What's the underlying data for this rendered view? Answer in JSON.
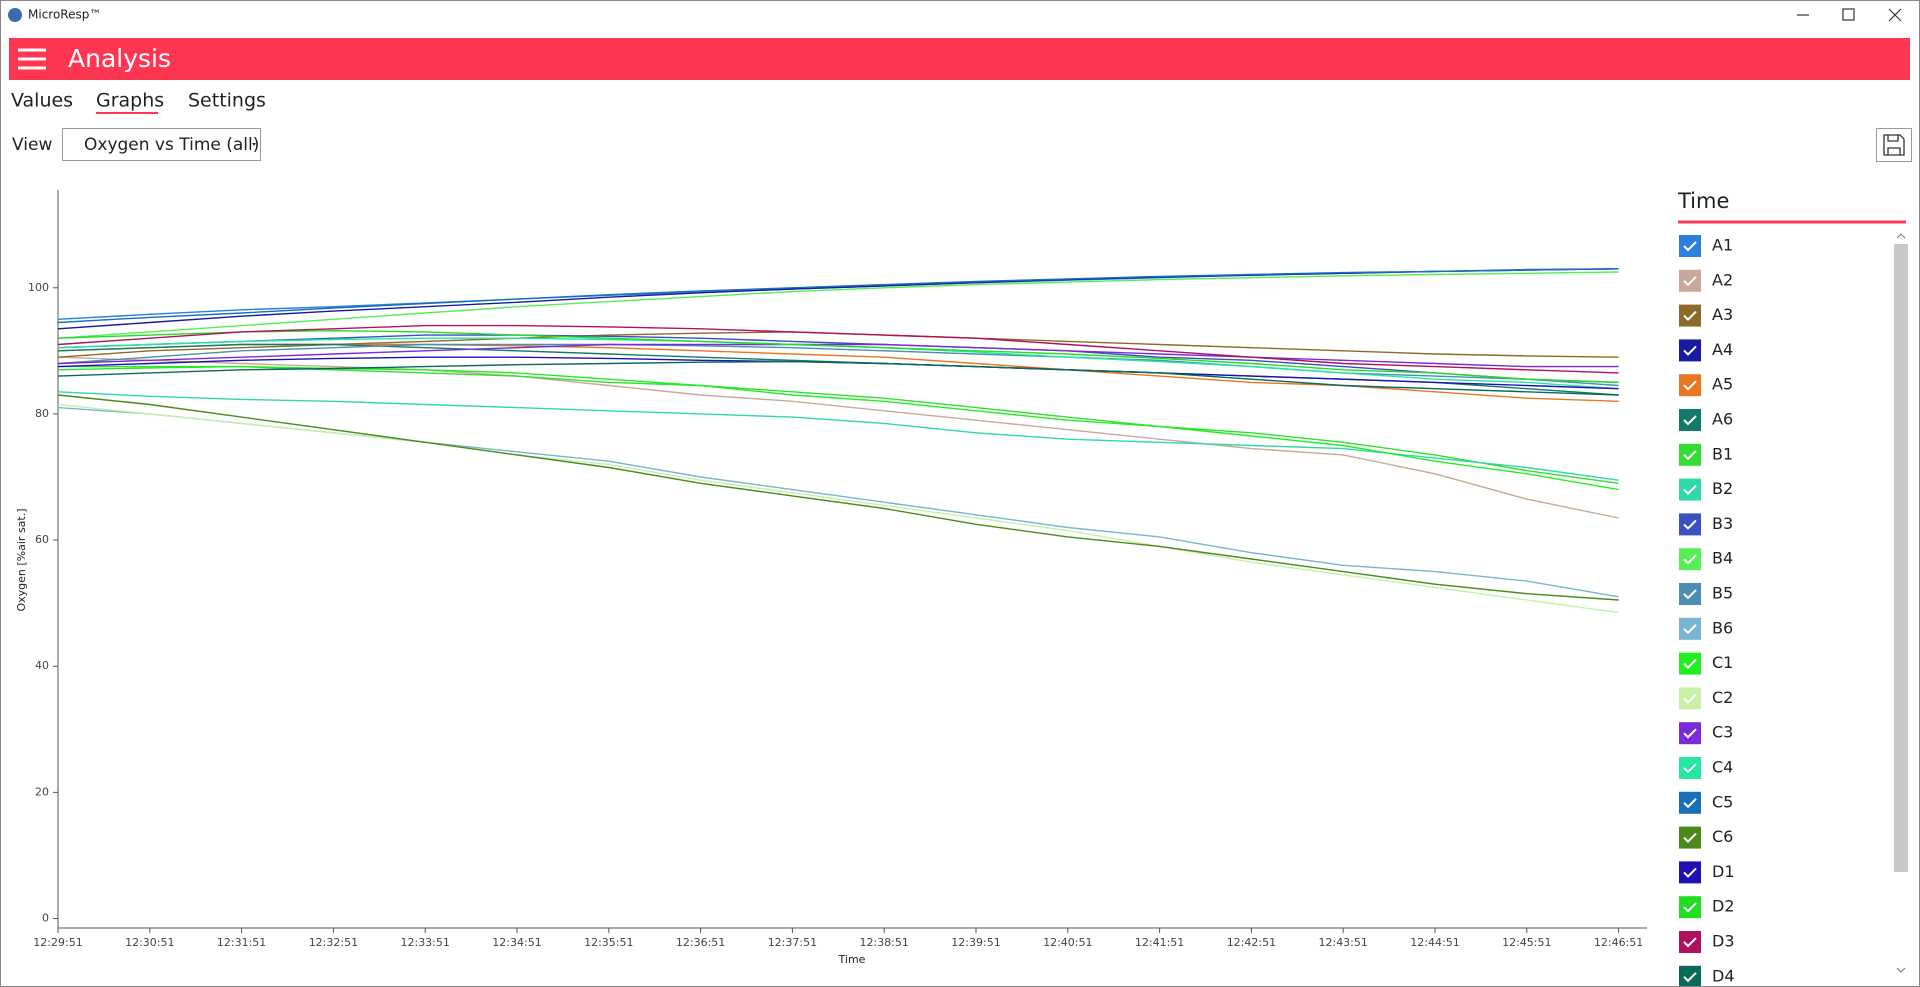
{
  "window_title": "MicroResp™",
  "app_title": "Analysis",
  "tabs": [
    "Values",
    "Graphs",
    "Settings"
  ],
  "view_label": "View",
  "view_selection": "Oxygen vs Time (all)",
  "chart_data": {
    "type": "line",
    "legend_title": "Time",
    "x_label": "Time",
    "y_label": "Oxygen [%air sat.]",
    "categories": [
      "12:29:51",
      "12:30:51",
      "12:31:51",
      "12:32:51",
      "12:33:51",
      "12:34:51",
      "12:35:51",
      "12:36:51",
      "12:37:51",
      "12:38:51",
      "12:39:51",
      "12:40:51",
      "12:41:51",
      "12:42:51",
      "12:43:51",
      "12:44:51",
      "12:45:51",
      "12:46:51"
    ],
    "ylim": [
      -1.5,
      115.5
    ],
    "yticks": [
      0,
      20,
      40,
      60,
      80,
      100
    ],
    "series": [
      {
        "name": "A1",
        "color": "#2a7fe0",
        "values": [
          95,
          95.8,
          96.5,
          97,
          97.6,
          98.2,
          98.8,
          99.3,
          99.8,
          100.3,
          100.8,
          101.2,
          101.6,
          102,
          102.3,
          102.6,
          102.9,
          103
        ]
      },
      {
        "name": "A2",
        "color": "#c8a898",
        "values": [
          89,
          88.5,
          88,
          87.5,
          87,
          86,
          84.5,
          83,
          82,
          80.5,
          79,
          77.5,
          76,
          74.5,
          73.5,
          70.5,
          66.5,
          63.5
        ]
      },
      {
        "name": "A3",
        "color": "#8b6a2a",
        "values": [
          89,
          90,
          90.5,
          91,
          91.5,
          92,
          92.5,
          92.8,
          93,
          92.5,
          92,
          91.5,
          91,
          90.5,
          90,
          89.5,
          89.2,
          89
        ]
      },
      {
        "name": "A4",
        "color": "#1a1aa0",
        "values": [
          93.5,
          94.5,
          95.5,
          96.3,
          97,
          97.7,
          98.5,
          99.2,
          99.8,
          100.3,
          100.8,
          101.3,
          101.7,
          102,
          102.3,
          102.6,
          102.8,
          103
        ]
      },
      {
        "name": "A5",
        "color": "#e87722",
        "values": [
          90,
          90.5,
          91,
          91,
          91,
          90.8,
          90.5,
          90,
          89.5,
          89,
          88,
          87,
          86,
          85,
          84.5,
          83.5,
          82.5,
          82
        ]
      },
      {
        "name": "A6",
        "color": "#137a6a",
        "values": [
          90,
          90.5,
          91,
          91,
          90.5,
          90,
          89.5,
          89,
          88.5,
          88,
          87.5,
          87,
          86.5,
          86,
          85.5,
          85,
          84,
          83
        ]
      },
      {
        "name": "B1",
        "color": "#33dd33",
        "values": [
          87,
          87.3,
          87.5,
          87,
          86.5,
          86,
          85,
          84.5,
          83.5,
          82.5,
          81,
          79.5,
          78,
          77,
          75.5,
          73.5,
          71,
          69
        ]
      },
      {
        "name": "B2",
        "color": "#2fd9a8",
        "values": [
          83.5,
          82.8,
          82.3,
          82,
          81.5,
          81,
          80.5,
          80,
          79.5,
          78.5,
          77,
          76,
          75.5,
          75,
          74.5,
          73,
          71.5,
          69.5
        ]
      },
      {
        "name": "B3",
        "color": "#3a4fc0",
        "values": [
          90.5,
          91,
          91.5,
          92,
          92.5,
          92.5,
          92.3,
          92,
          91.5,
          91,
          90.5,
          90,
          89,
          88.5,
          87.5,
          86.5,
          85.5,
          85
        ]
      },
      {
        "name": "B4",
        "color": "#55ee55",
        "values": [
          92,
          93,
          94,
          95,
          96,
          97,
          97.8,
          98.6,
          99.4,
          100,
          100.5,
          100.9,
          101.3,
          101.6,
          101.9,
          102.1,
          102.3,
          102.5
        ]
      },
      {
        "name": "B5",
        "color": "#4a8fb0",
        "values": [
          88,
          89,
          90,
          90.5,
          91,
          91,
          91,
          90.8,
          90.5,
          90,
          89.5,
          89,
          88.5,
          87.5,
          86.5,
          86,
          85.5,
          84.5
        ]
      },
      {
        "name": "B6",
        "color": "#7ab4d0",
        "values": [
          81,
          80,
          78.5,
          77,
          75.5,
          74,
          72.5,
          70,
          68,
          66,
          64,
          62,
          60.5,
          58,
          56,
          55,
          53.5,
          51
        ]
      },
      {
        "name": "C1",
        "color": "#22ee22",
        "values": [
          87.5,
          87.5,
          87.5,
          87.2,
          87,
          86.5,
          85.5,
          84.5,
          83,
          82,
          80.5,
          79,
          78,
          76.5,
          75,
          72.5,
          70.5,
          68
        ]
      },
      {
        "name": "C2",
        "color": "#c8f0a8",
        "values": [
          81.5,
          80,
          78.5,
          77,
          75.5,
          73.5,
          72,
          69.5,
          67.5,
          65.5,
          63.5,
          61.5,
          59,
          56.5,
          54.5,
          52.5,
          50.5,
          48.5
        ]
      },
      {
        "name": "C3",
        "color": "#7a2ad8",
        "values": [
          88,
          88.5,
          89,
          89.5,
          90,
          90.5,
          91,
          91,
          91,
          91,
          90.5,
          90,
          89.5,
          89,
          88.5,
          88,
          87.5,
          87.5
        ]
      },
      {
        "name": "C4",
        "color": "#22e8a0",
        "values": [
          90.5,
          91,
          91.5,
          91.8,
          92,
          92,
          91.8,
          91.5,
          91,
          90.5,
          89.8,
          89,
          88.3,
          87.5,
          86.5,
          85.5,
          85,
          84
        ]
      },
      {
        "name": "C5",
        "color": "#1a70b8",
        "values": [
          94.5,
          95.3,
          96,
          96.8,
          97.5,
          98.2,
          98.9,
          99.5,
          100,
          100.5,
          101,
          101.4,
          101.8,
          102.1,
          102.4,
          102.6,
          102.8,
          103
        ]
      },
      {
        "name": "C6",
        "color": "#4a8a1a",
        "values": [
          83,
          81.5,
          79.5,
          77.5,
          75.5,
          73.5,
          71.5,
          69,
          67,
          65,
          62.5,
          60.5,
          59,
          57,
          55,
          53,
          51.5,
          50.5
        ]
      },
      {
        "name": "D1",
        "color": "#2010b0",
        "values": [
          87.5,
          88,
          88.5,
          88.8,
          89,
          89,
          88.8,
          88.5,
          88.3,
          88,
          87.5,
          87,
          86.5,
          86,
          85.5,
          85,
          84.5,
          84
        ]
      },
      {
        "name": "D2",
        "color": "#22dd22",
        "values": [
          92,
          92.5,
          93,
          93.2,
          93,
          92.5,
          92,
          91.5,
          91,
          90.5,
          90,
          89.5,
          88.8,
          88,
          87,
          86.5,
          85.5,
          85
        ]
      },
      {
        "name": "D3",
        "color": "#b01060",
        "values": [
          91,
          92,
          93,
          93.5,
          94,
          94,
          93.8,
          93.5,
          93,
          92.5,
          92,
          91,
          90,
          89,
          88,
          87.5,
          87,
          86.5
        ]
      },
      {
        "name": "D4",
        "color": "#0a6a5a",
        "values": [
          86,
          86.5,
          87,
          87.2,
          87.5,
          87.8,
          88,
          88.2,
          88.3,
          88,
          87.5,
          87,
          86.5,
          85.5,
          84.5,
          84,
          83.5,
          83
        ]
      }
    ]
  }
}
